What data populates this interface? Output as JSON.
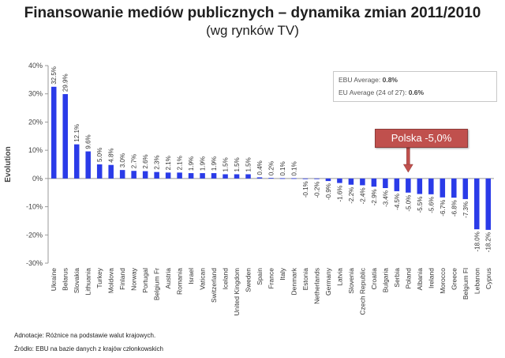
{
  "chart_data": {
    "type": "bar",
    "title": "Finansowanie mediów publicznych – dynamika zmian 2011/2010",
    "subtitle": "(wg rynków TV)",
    "ylabel": "Evolution",
    "xlabel": "",
    "ylim": [
      -30,
      40
    ],
    "yticks": [
      -30,
      -20,
      -10,
      0,
      10,
      20,
      30,
      40
    ],
    "ytick_labels": [
      "-30%",
      "-20%",
      "-10%",
      "0%",
      "10%",
      "20%",
      "30%",
      "40%"
    ],
    "categories": [
      "Ukraine",
      "Belarus",
      "Slovakia",
      "Lithuania",
      "Turkey",
      "Moldova",
      "Finland",
      "Norway",
      "Portugal",
      "Belgium Fr",
      "Austria",
      "Romania",
      "Israel",
      "Vatican",
      "Switzerland",
      "Iceland",
      "United Kingdom",
      "Sweden",
      "Spain",
      "France",
      "Italy",
      "Denmark",
      "Estonia",
      "Netherlands",
      "Germany",
      "Latvia",
      "Slovenia",
      "Czech Republic",
      "Croatia",
      "Bulgaria",
      "Serbia",
      "Poland",
      "Albania",
      "Ireland",
      "Morocco",
      "Greece",
      "Belgium Fl",
      "Lebanon",
      "Cyprus"
    ],
    "values": [
      32.5,
      29.9,
      12.1,
      9.6,
      5.0,
      4.8,
      3.0,
      2.7,
      2.6,
      2.3,
      2.1,
      2.1,
      1.9,
      1.9,
      1.9,
      1.5,
      1.5,
      1.5,
      0.4,
      0.2,
      0.1,
      0.1,
      -0.1,
      -0.2,
      -0.9,
      -1.6,
      -2.2,
      -2.4,
      -2.9,
      -3.4,
      -4.5,
      -5.0,
      -5.5,
      -5.6,
      -6.7,
      -6.8,
      -7.3,
      -18.0,
      -18.2
    ],
    "data_labels": [
      "32.5%",
      "29.9%",
      "12.1%",
      "9.6%",
      "5.0%",
      "4.8%",
      "3.0%",
      "2.7%",
      "2.6%",
      "2.3%",
      "2.1%",
      "2.1%",
      "1.9%",
      "1.9%",
      "1.9%",
      "1.5%",
      "1.5%",
      "1.5%",
      "0.4%",
      "0.2%",
      "0.1%",
      "0.1%",
      "-0.1%",
      "-0.2%",
      "-0.9%",
      "-1.6%",
      "-2.2%",
      "-2.4%",
      "-2.9%",
      "-3.4%",
      "-4.5%",
      "-5.0%",
      "-5.5%",
      "-5.6%",
      "-6.7%",
      "-6.8%",
      "-7.3%",
      "-18.0%",
      "-18.2%"
    ],
    "bar_color": "#2a3be8",
    "grid": false,
    "legend_lines": [
      {
        "label": "EBU Average: ",
        "value": "0.8%"
      },
      {
        "label": "EU Average (24 of 27): ",
        "value": "0.6%"
      }
    ],
    "callout": {
      "text": "Polska -5,0%",
      "category": "Poland",
      "color": "#c0504d"
    }
  },
  "notes": {
    "annotation": "Adnotacje: Różnice na podstawie walut krajowych.",
    "source": "Źródło: EBU na bazie danych z krajów członkowskich"
  }
}
